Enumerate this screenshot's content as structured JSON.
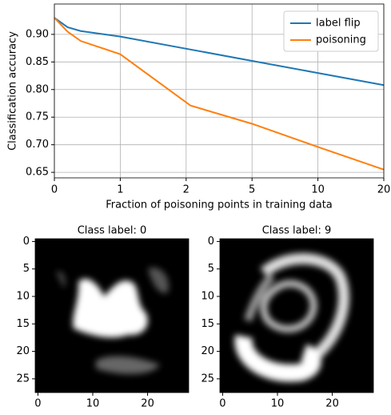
{
  "chart_data": [
    {
      "type": "line",
      "xlabel": "Fraction of poisoning points in training data",
      "ylabel": "Classification accuracy",
      "xlim": [
        0,
        20
      ],
      "xticks": [
        0,
        1,
        2,
        5,
        10,
        20
      ],
      "ylim": [
        0.64,
        0.955
      ],
      "yticks": [
        {
          "value": 0.65,
          "label": "0.65"
        },
        {
          "value": 0.7,
          "label": "0.70"
        },
        {
          "value": 0.75,
          "label": "0.75"
        },
        {
          "value": 0.8,
          "label": "0.80"
        },
        {
          "value": 0.85,
          "label": "0.85"
        },
        {
          "value": 0.9,
          "label": "0.90"
        }
      ],
      "grid": true,
      "legend": "upper right",
      "series": [
        {
          "name": "label flip",
          "color": "#1f77b4",
          "x": [
            0,
            0.2,
            0.4,
            1,
            2,
            5,
            10,
            20
          ],
          "values": [
            0.93,
            0.913,
            0.906,
            0.896,
            0.874,
            0.852,
            0.83,
            0.808
          ]
        },
        {
          "name": "poisoning",
          "color": "#ff7f0e",
          "x": [
            0,
            0.2,
            0.4,
            1,
            2.2,
            5,
            10,
            20
          ],
          "values": [
            0.93,
            0.905,
            0.888,
            0.864,
            0.771,
            0.738,
            0.696,
            0.655
          ]
        }
      ]
    },
    {
      "type": "image",
      "title": "Class label: 0",
      "xlim": [
        -0.5,
        27.5
      ],
      "ylim": [
        27.5,
        -0.5
      ],
      "xticks": [
        0,
        10,
        20
      ],
      "yticks": [
        0,
        5,
        10,
        15,
        20,
        25
      ]
    },
    {
      "type": "image",
      "title": "Class label: 9",
      "xlim": [
        -0.5,
        27.5
      ],
      "ylim": [
        27.5,
        -0.5
      ],
      "xticks": [
        0,
        10,
        20
      ],
      "yticks": [
        0,
        5,
        10,
        15,
        20,
        25
      ]
    }
  ]
}
